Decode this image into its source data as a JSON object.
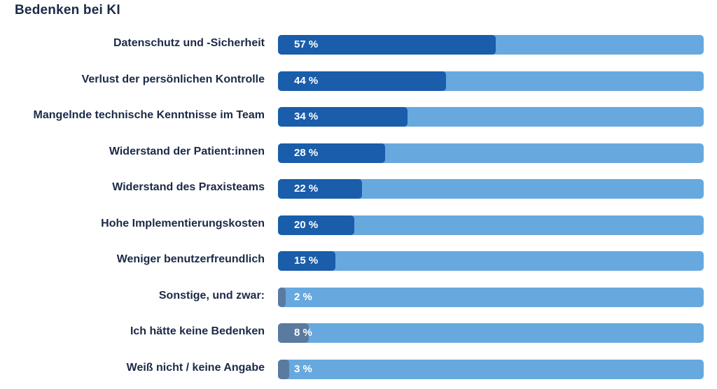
{
  "title": "Bedenken bei KI",
  "colors": {
    "track": "#67a9df",
    "fill_primary": "#1a5daa",
    "fill_other": "#5a7a9f",
    "label_text": "#1b2a47",
    "value_text": "#ffffff"
  },
  "chart_data": {
    "type": "bar",
    "orientation": "horizontal",
    "title": "Bedenken bei KI",
    "xlabel": "",
    "ylabel": "",
    "unit": "%",
    "xlim": [
      0,
      100
    ],
    "grid": false,
    "legend": "none",
    "categories": [
      "Datenschutz und -Sicherheit",
      "Verlust der persönlichen Kontrolle",
      "Mangelnde technische Kenntnisse im Team",
      "Widerstand der Patient:innen",
      "Widerstand des Praxisteams",
      "Hohe Implementierungskosten",
      "Weniger benutzerfreundlich",
      "Sonstige, und zwar:",
      "Ich hätte keine Bedenken",
      "Weiß nicht / keine Angabe"
    ],
    "values": [
      57,
      44,
      34,
      28,
      22,
      20,
      15,
      2,
      8,
      3
    ],
    "value_labels": [
      "57 %",
      "44 %",
      "34 %",
      "28 %",
      "22 %",
      "20 %",
      "15 %",
      "2 %",
      "8 %",
      "3 %"
    ],
    "fill_group": [
      "primary",
      "primary",
      "primary",
      "primary",
      "primary",
      "primary",
      "primary",
      "other",
      "other",
      "other"
    ]
  }
}
